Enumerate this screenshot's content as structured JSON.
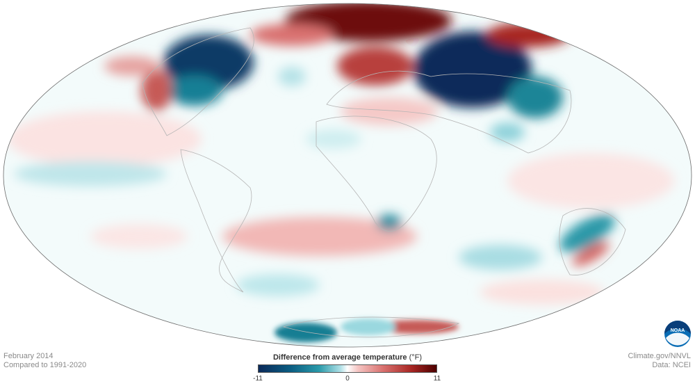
{
  "caption": {
    "date": "February 2014",
    "baseline": "Compared to 1991-2020"
  },
  "credits": {
    "site": "Climate.gov/NNVL",
    "source": "Data: NCEI"
  },
  "legend": {
    "title": "Difference from average temperature",
    "unit": "(°F)",
    "min_label": "-11",
    "mid_label": "0",
    "max_label": "11",
    "colors": {
      "cold": "#0b2a5a",
      "cool": "#2a9aaa",
      "neutral": "#ffffff",
      "warm": "#d9716f",
      "hot": "#4d0000"
    }
  },
  "logo": {
    "text": "NOAA",
    "icon": "noaa-logo-icon"
  }
}
